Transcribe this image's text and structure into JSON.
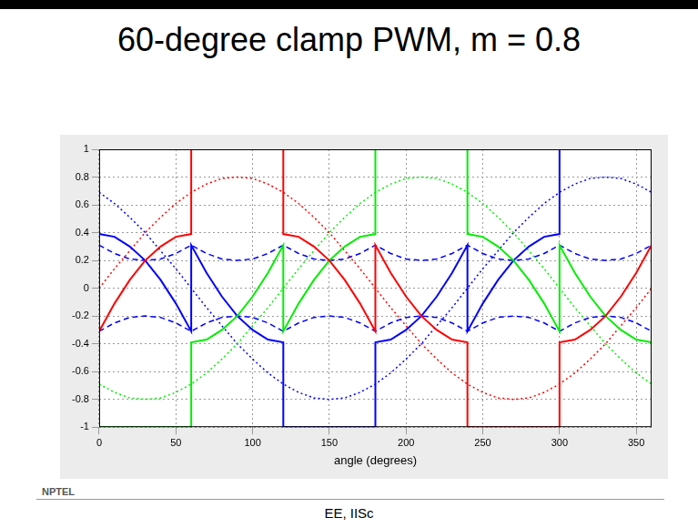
{
  "slide": {
    "title": "60-degree clamp PWM, m = 0.8",
    "logo_text": "NPTEL",
    "footer": "EE, IISc"
  },
  "chart_data": {
    "type": "line",
    "xlabel": "angle (degrees)",
    "x": [
      0,
      10,
      20,
      30,
      40,
      50,
      60,
      70,
      80,
      90,
      100,
      110,
      120,
      130,
      140,
      150,
      160,
      170,
      180,
      190,
      200,
      210,
      220,
      230,
      240,
      250,
      260,
      270,
      280,
      290,
      300,
      310,
      320,
      330,
      340,
      350,
      360
    ],
    "xlim": [
      0,
      360
    ],
    "xticks": [
      0,
      50,
      100,
      150,
      200,
      250,
      300,
      350
    ],
    "ylim": [
      -1,
      1
    ],
    "yticks": [
      -1,
      -0.8,
      -0.6,
      -0.4,
      -0.2,
      0,
      0.2,
      0.4,
      0.6,
      0.8,
      1
    ],
    "grid": true,
    "series": [
      {
        "color": "#ff0000",
        "line_style": "solid",
        "x": [
          0,
          10,
          20,
          30,
          40,
          50,
          60,
          60,
          70,
          80,
          90,
          100,
          110,
          120,
          120,
          130,
          140,
          150,
          160,
          170,
          180,
          180,
          190,
          200,
          210,
          220,
          230,
          240,
          240,
          250,
          260,
          270,
          280,
          290,
          300,
          300,
          310,
          320,
          330,
          340,
          350,
          360
        ],
        "values": [
          -0.31,
          -0.11,
          0.06,
          0.2,
          0.3,
          0.37,
          0.39,
          1,
          1,
          1,
          1,
          1,
          1,
          1,
          0.39,
          0.37,
          0.3,
          0.2,
          0.06,
          -0.11,
          -0.31,
          0.31,
          0.11,
          -0.06,
          -0.2,
          -0.3,
          -0.37,
          -0.39,
          -1,
          -1,
          -1,
          -1,
          -1,
          -1,
          -1,
          -0.39,
          -0.37,
          -0.3,
          -0.2,
          -0.06,
          0.11,
          0.31
        ]
      },
      {
        "color": "#00ee00",
        "line_style": "solid",
        "x": [
          0,
          10,
          20,
          30,
          40,
          50,
          60,
          60,
          70,
          80,
          90,
          100,
          110,
          120,
          120,
          130,
          140,
          150,
          160,
          170,
          180,
          180,
          190,
          200,
          210,
          220,
          230,
          240,
          240,
          250,
          260,
          270,
          280,
          290,
          300,
          300,
          310,
          320,
          330,
          340,
          350,
          360
        ],
        "values": [
          -1,
          -1,
          -1,
          -1,
          -1,
          -1,
          -1,
          -0.39,
          -0.37,
          -0.3,
          -0.2,
          -0.06,
          0.11,
          0.31,
          -0.31,
          -0.11,
          0.06,
          0.2,
          0.3,
          0.37,
          0.39,
          1,
          1,
          1,
          1,
          1,
          1,
          1,
          0.39,
          0.37,
          0.3,
          0.2,
          0.06,
          -0.11,
          -0.31,
          0.31,
          0.11,
          -0.06,
          -0.2,
          -0.3,
          -0.37,
          -0.39
        ]
      },
      {
        "color": "#0000ff",
        "line_style": "solid",
        "x": [
          0,
          10,
          20,
          30,
          40,
          50,
          60,
          60,
          70,
          80,
          90,
          100,
          110,
          120,
          120,
          130,
          140,
          150,
          160,
          170,
          180,
          180,
          190,
          200,
          210,
          220,
          230,
          240,
          240,
          250,
          260,
          270,
          280,
          290,
          300,
          300,
          310,
          320,
          330,
          340,
          350,
          360
        ],
        "values": [
          0.39,
          0.37,
          0.3,
          0.2,
          0.06,
          -0.11,
          -0.31,
          0.31,
          0.11,
          -0.06,
          -0.2,
          -0.3,
          -0.37,
          -0.39,
          -1,
          -1,
          -1,
          -1,
          -1,
          -1,
          -1,
          -0.39,
          -0.37,
          -0.3,
          -0.2,
          -0.06,
          0.11,
          0.31,
          -0.31,
          -0.11,
          0.06,
          0.2,
          0.3,
          0.37,
          0.39,
          1,
          1,
          1,
          1,
          1,
          1,
          1
        ]
      },
      {
        "color": "#0000ff",
        "line_style": "dashed",
        "values": [
          0.31,
          0.25,
          0.21,
          0.2,
          0.21,
          0.25,
          0.31,
          0.25,
          0.21,
          0.2,
          0.21,
          0.25,
          0.31,
          0.25,
          0.21,
          0.2,
          0.21,
          0.25,
          0.31,
          0.25,
          0.21,
          0.2,
          0.21,
          0.25,
          0.31,
          0.25,
          0.21,
          0.2,
          0.21,
          0.25,
          0.31,
          0.25,
          0.21,
          0.2,
          0.21,
          0.25,
          0.31
        ]
      },
      {
        "color": "#0000ff",
        "line_style": "dashed",
        "values": [
          -0.31,
          -0.25,
          -0.21,
          -0.2,
          -0.21,
          -0.25,
          -0.31,
          -0.25,
          -0.21,
          -0.2,
          -0.21,
          -0.25,
          -0.31,
          -0.25,
          -0.21,
          -0.2,
          -0.21,
          -0.25,
          -0.31,
          -0.25,
          -0.21,
          -0.2,
          -0.21,
          -0.25,
          -0.31,
          -0.25,
          -0.21,
          -0.2,
          -0.21,
          -0.25,
          -0.31,
          -0.25,
          -0.21,
          -0.2,
          -0.21,
          -0.25,
          -0.31
        ]
      },
      {
        "color": "#ff0000",
        "line_style": "dotted",
        "values": [
          0,
          0.14,
          0.27,
          0.4,
          0.51,
          0.61,
          0.69,
          0.75,
          0.79,
          0.8,
          0.79,
          0.75,
          0.69,
          0.61,
          0.51,
          0.4,
          0.27,
          0.14,
          0,
          -0.14,
          -0.27,
          -0.4,
          -0.51,
          -0.61,
          -0.69,
          -0.75,
          -0.79,
          -0.8,
          -0.79,
          -0.75,
          -0.69,
          -0.61,
          -0.51,
          -0.4,
          -0.27,
          -0.14,
          0
        ]
      },
      {
        "color": "#00ee00",
        "line_style": "dotted",
        "values": [
          -0.69,
          -0.75,
          -0.79,
          -0.8,
          -0.79,
          -0.75,
          -0.69,
          -0.61,
          -0.51,
          -0.4,
          -0.27,
          -0.14,
          0,
          0.14,
          0.27,
          0.4,
          0.51,
          0.61,
          0.69,
          0.75,
          0.79,
          0.8,
          0.79,
          0.75,
          0.69,
          0.61,
          0.51,
          0.4,
          0.27,
          0.14,
          0,
          -0.14,
          -0.27,
          -0.4,
          -0.51,
          -0.61,
          -0.69
        ]
      },
      {
        "color": "#0000ff",
        "line_style": "dotted",
        "values": [
          0.69,
          0.61,
          0.51,
          0.4,
          0.27,
          0.14,
          0,
          -0.14,
          -0.27,
          -0.4,
          -0.51,
          -0.61,
          -0.69,
          -0.75,
          -0.79,
          -0.8,
          -0.79,
          -0.75,
          -0.69,
          -0.61,
          -0.51,
          -0.4,
          -0.27,
          -0.14,
          0,
          0.14,
          0.27,
          0.4,
          0.51,
          0.61,
          0.69,
          0.75,
          0.79,
          0.8,
          0.79,
          0.75,
          0.69
        ]
      }
    ]
  }
}
